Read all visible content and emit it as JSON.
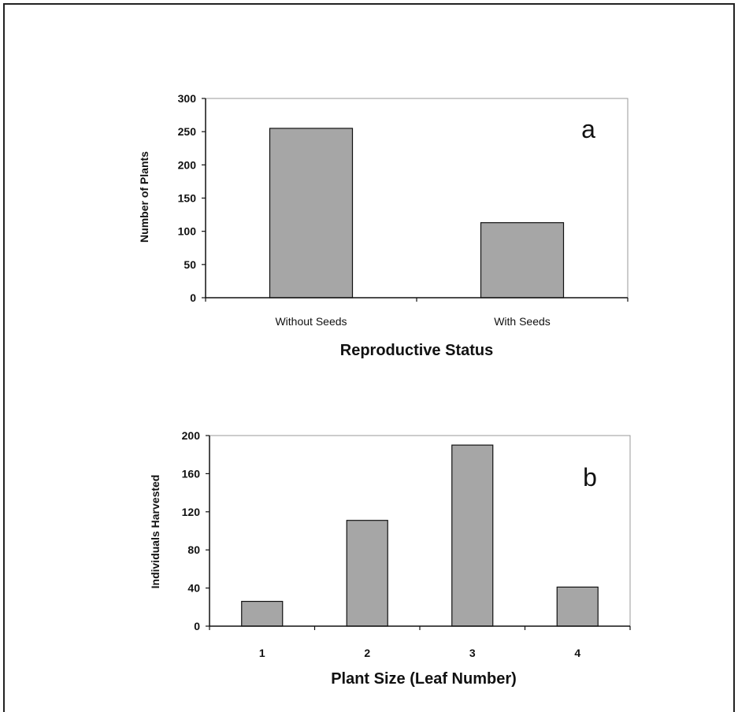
{
  "colors": {
    "bar_fill": "#a6a6a6",
    "bar_stroke": "#111111",
    "axis": "#111111"
  },
  "chart_data": [
    {
      "type": "bar",
      "panel_label": "a",
      "categories": [
        "Without Seeds",
        "With Seeds"
      ],
      "values": [
        255,
        113
      ],
      "xlabel": "Reproductive Status",
      "ylabel": "Number of Plants",
      "ylim": [
        0,
        300
      ],
      "yticks": [
        0,
        50,
        100,
        150,
        200,
        250,
        300
      ],
      "grid": false
    },
    {
      "type": "bar",
      "panel_label": "b",
      "categories": [
        "1",
        "2",
        "3",
        "4"
      ],
      "values": [
        26,
        111,
        190,
        41
      ],
      "xlabel": "Plant Size (Leaf Number)",
      "ylabel": "Individuals Harvested",
      "ylim": [
        0,
        200
      ],
      "yticks": [
        0,
        40,
        80,
        120,
        160,
        200
      ],
      "grid": false
    }
  ]
}
